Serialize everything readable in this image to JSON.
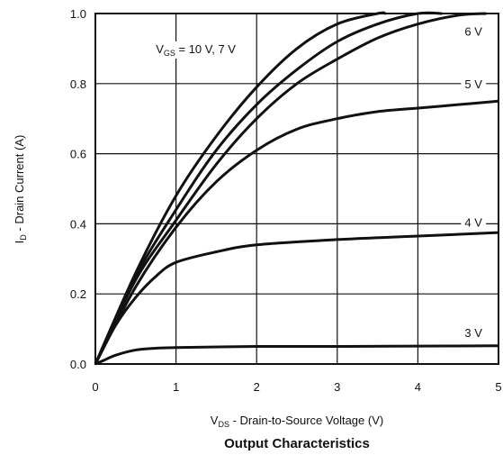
{
  "chart_data": {
    "type": "line",
    "title": "Output Characteristics",
    "xlabel": {
      "prefix": "V",
      "sub": "DS",
      "rest": " - Drain-to-Source Voltage (V)"
    },
    "ylabel": {
      "prefix": "I",
      "sub": "D",
      "rest": " - Drain Current (A)"
    },
    "xlim": [
      0,
      5
    ],
    "ylim": [
      0,
      1.0
    ],
    "x_ticks": [
      "0",
      "1",
      "2",
      "3",
      "4",
      "5"
    ],
    "y_ticks": [
      "0.0",
      "0.2",
      "0.4",
      "0.6",
      "0.8",
      "1.0"
    ],
    "grid": true,
    "series": [
      {
        "name": "VGS = 10 V",
        "x": [
          0,
          0.5,
          1,
          1.5,
          2,
          2.5,
          3,
          3.5,
          3.6
        ],
        "y": [
          0,
          0.26,
          0.48,
          0.65,
          0.79,
          0.9,
          0.97,
          1.0,
          1.0
        ]
      },
      {
        "name": "7 V",
        "x": [
          0,
          0.5,
          1,
          1.5,
          2,
          2.5,
          3,
          3.5,
          4,
          4.3
        ],
        "y": [
          0,
          0.25,
          0.44,
          0.61,
          0.74,
          0.84,
          0.92,
          0.97,
          1.0,
          1.0
        ]
      },
      {
        "name": "6 V",
        "x": [
          0,
          0.5,
          1,
          1.5,
          2,
          2.5,
          3,
          3.5,
          4,
          4.5,
          4.85
        ],
        "y": [
          0,
          0.24,
          0.41,
          0.57,
          0.7,
          0.8,
          0.87,
          0.93,
          0.97,
          0.995,
          1.0
        ]
      },
      {
        "name": "5 V",
        "x": [
          0,
          0.5,
          1,
          1.5,
          2,
          2.5,
          3,
          3.5,
          4,
          4.5,
          5
        ],
        "y": [
          0,
          0.22,
          0.39,
          0.52,
          0.61,
          0.67,
          0.7,
          0.72,
          0.73,
          0.74,
          0.75
        ]
      },
      {
        "name": "4 V",
        "x": [
          0,
          0.25,
          0.5,
          0.75,
          1,
          1.5,
          2,
          3,
          4,
          5
        ],
        "y": [
          0,
          0.11,
          0.19,
          0.25,
          0.29,
          0.32,
          0.34,
          0.355,
          0.365,
          0.375
        ]
      },
      {
        "name": "3 V",
        "x": [
          0,
          0.1,
          0.25,
          0.5,
          0.75,
          1,
          2,
          3,
          4,
          5
        ],
        "y": [
          0,
          0.01,
          0.025,
          0.04,
          0.045,
          0.047,
          0.05,
          0.05,
          0.051,
          0.052
        ]
      }
    ],
    "annotations": [
      {
        "text_prefix": "V",
        "text_sub": "GS",
        "text_rest": " = 10 V, 7 V",
        "x": 0.75,
        "y": 0.9
      },
      {
        "text": "6 V",
        "x": 4.58,
        "y": 0.95
      },
      {
        "text": "5 V",
        "x": 4.58,
        "y": 0.8
      },
      {
        "text": "4 V",
        "x": 4.58,
        "y": 0.405
      },
      {
        "text": "3 V",
        "x": 4.58,
        "y": 0.09
      }
    ]
  }
}
